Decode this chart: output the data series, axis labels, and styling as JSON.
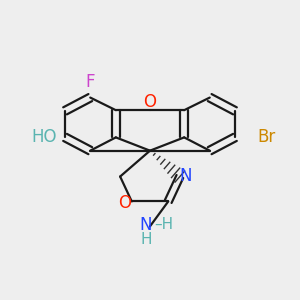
{
  "background_color": "#eeeeee",
  "bond_color": "#1a1a1a",
  "figsize": [
    3.0,
    3.0
  ],
  "dpi": 100,
  "atoms": {
    "O_xan": {
      "label": "O",
      "color": "#ff2200"
    },
    "F": {
      "label": "F",
      "color": "#cc44cc"
    },
    "HO": {
      "label": "HO",
      "color": "#5ab4b0"
    },
    "O_label": {
      "label": "O",
      "color": "#ff2200"
    },
    "Br": {
      "label": "Br",
      "color": "#cc8800"
    },
    "N": {
      "label": "N",
      "color": "#2244ff"
    },
    "NH": {
      "label": "N",
      "color": "#2244ff"
    },
    "H1": {
      "label": "H",
      "color": "#5ab4b0"
    },
    "H2": {
      "label": "H",
      "color": "#5ab4b0"
    }
  }
}
